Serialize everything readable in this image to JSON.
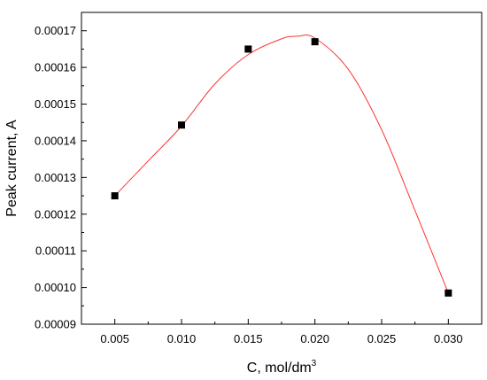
{
  "chart_data": {
    "type": "scatter",
    "title": "",
    "xlabel": "C, mol/dm",
    "xlabel_superscript": "3",
    "ylabel": "Peak current, A",
    "xlim": [
      0.0025,
      0.0325
    ],
    "ylim": [
      9e-05,
      0.000175
    ],
    "x_ticks": [
      0.005,
      0.01,
      0.015,
      0.02,
      0.025,
      0.03
    ],
    "x_tick_labels": [
      "0.005",
      "0.010",
      "0.015",
      "0.020",
      "0.025",
      "0.030"
    ],
    "y_ticks": [
      9e-05,
      0.0001,
      0.00011,
      0.00012,
      0.00013,
      0.00014,
      0.00015,
      0.00016,
      0.00017
    ],
    "y_tick_labels": [
      "0.00009",
      "0.00010",
      "0.00011",
      "0.00012",
      "0.00013",
      "0.00014",
      "0.00015",
      "0.00016",
      "0.00017"
    ],
    "grid": false,
    "legend": "none",
    "series": [
      {
        "marker": "square",
        "color": "#000000",
        "x": [
          0.005,
          0.01,
          0.015,
          0.02,
          0.03
        ],
        "y": [
          0.000125,
          0.0001443,
          0.000165,
          0.000167,
          9.85e-05
        ]
      }
    ],
    "fit_curve": {
      "type": "smooth-curve",
      "color": "#ff3333",
      "x": [
        0.005,
        0.0075,
        0.01,
        0.0125,
        0.015,
        0.0175,
        0.0187,
        0.02,
        0.0225,
        0.025,
        0.0275,
        0.03
      ],
      "y": [
        0.000125,
        0.0001345,
        0.000144,
        0.0001555,
        0.0001635,
        0.0001678,
        0.0001685,
        0.000168,
        0.0001595,
        0.000143,
        0.000121,
        9.85e-05
      ]
    }
  }
}
